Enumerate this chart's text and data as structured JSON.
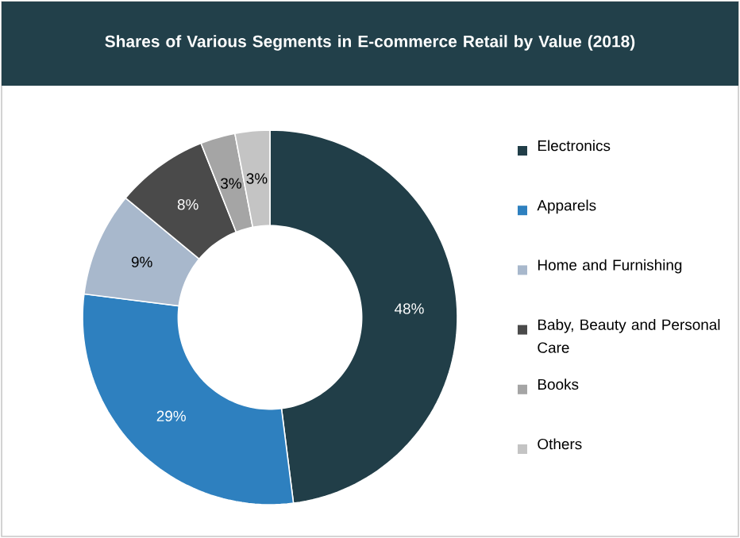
{
  "chart_data": {
    "type": "donut",
    "title": "Shares of Various Segments in E-commerce Retail by Value (2018)",
    "categories": [
      "Electronics",
      "Apparels",
      "Home and Furnishing",
      "Baby, Beauty and Personal Care",
      "Books",
      "Others"
    ],
    "values": [
      48,
      29,
      9,
      8,
      3,
      3
    ],
    "value_labels": [
      "48%",
      "29%",
      "9%",
      "8%",
      "3%",
      "3%"
    ],
    "colors": [
      "#213e48",
      "#2e80bf",
      "#a8b8cc",
      "#4a4a4a",
      "#a5a5a5",
      "#c4c4c4"
    ],
    "legend": "right"
  }
}
